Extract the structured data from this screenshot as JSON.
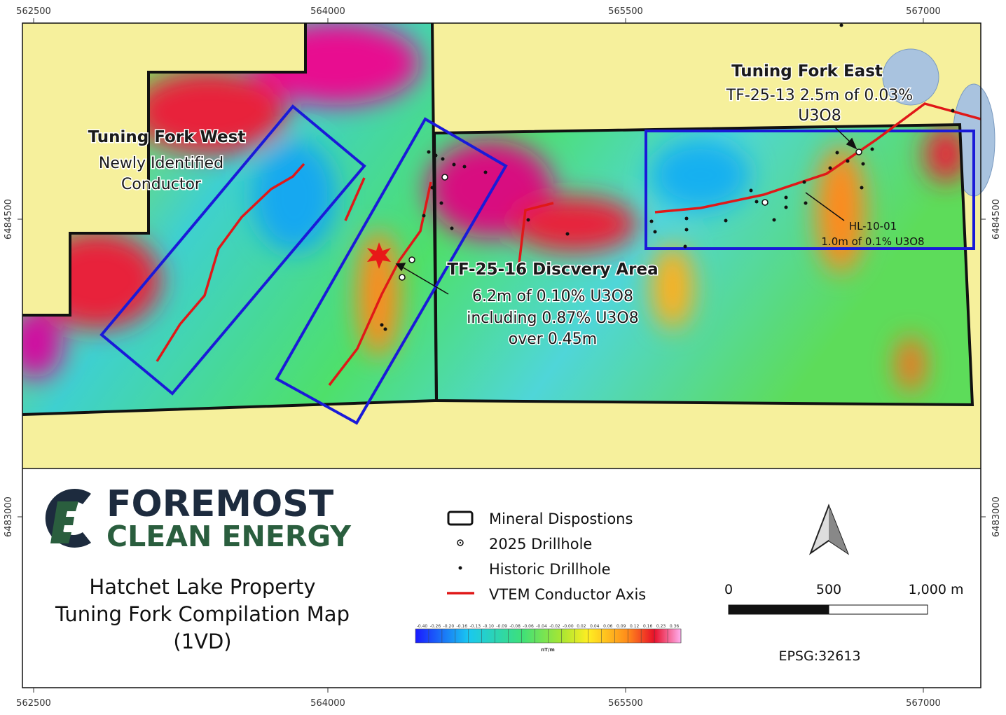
{
  "coordinates": {
    "top": [
      "562500",
      "564000",
      "565500",
      "567000"
    ],
    "bottom": [
      "562500",
      "564000",
      "565500",
      "567000"
    ],
    "left": [
      "6484500",
      "6483000"
    ],
    "right": [
      "6484500",
      "6483000"
    ]
  },
  "map_labels": {
    "west_title": "Tuning Fork West",
    "west_line1": "Newly Identified",
    "west_line2": "Conductor",
    "discovery_title": "TF-25-16 Discvery Area",
    "discovery_line1": "6.2m of 0.10% U3O8",
    "discovery_line2": "including 0.87% U3O8",
    "discovery_line3": "over 0.45m",
    "east_title": "Tuning Fork East",
    "east_line1": "TF-25-13 2.5m of 0.03%",
    "east_line2": "U3O8",
    "hl_name": "HL-10-01",
    "hl_result": "1.0m of 0.1% U3O8"
  },
  "logo": {
    "line1": "FOREMOST",
    "line2": "CLEAN ENERGY"
  },
  "title": {
    "line1": "Hatchet Lake Property",
    "line2": "Tuning Fork Compilation Map",
    "line3": "(1VD)"
  },
  "legend": [
    "Mineral Dispostions",
    "2025 Drillhole",
    "Historic Drillhole",
    "VTEM Conductor Axis"
  ],
  "colorbar": {
    "labels": [
      "-0.40",
      "-0.26",
      "-0.20",
      "-0.16",
      "-0.13",
      "-0.10",
      "-0.09",
      "-0.08",
      "-0.06",
      "-0.04",
      "-0.02",
      "-0.00",
      "0.02",
      "0.04",
      "0.06",
      "0.09",
      "0.12",
      "0.16",
      "0.23",
      "0.36"
    ],
    "unit": "nT/m"
  },
  "scale_bar": {
    "labels": [
      "0",
      "500",
      "1,000 m"
    ]
  },
  "projection": "EPSG:32613"
}
